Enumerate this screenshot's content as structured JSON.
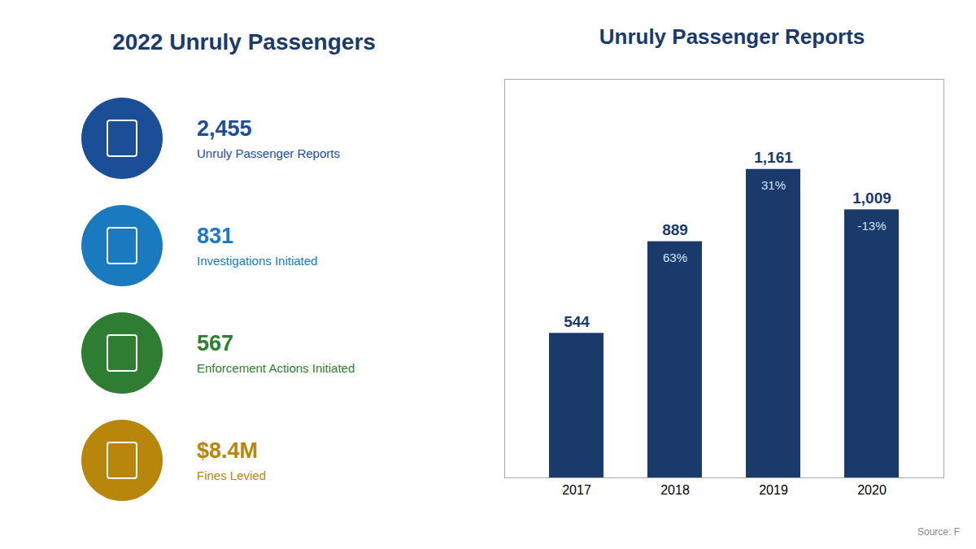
{
  "chart_data": {
    "type": "bar",
    "title": "Unruly Passenger Reports",
    "categories": [
      "2017",
      "2018",
      "2019",
      "2020"
    ],
    "values": [
      544,
      889,
      1161,
      1009
    ],
    "value_labels": [
      "544",
      "889",
      "1,161",
      "1,009"
    ],
    "data_labels": true,
    "pct_labels": [
      null,
      "63%",
      "31%",
      "-13%"
    ],
    "color": "#1a3a6b",
    "ylim": [
      0,
      1500
    ],
    "tick_labels": "x",
    "grid": false,
    "panel_title": "2022 Unruly Passengers",
    "stats": [
      {
        "value": "2,455",
        "label": "Unruly Passenger Reports",
        "color": "#1a4e96"
      },
      {
        "value": "831",
        "label": "Investigations Initiated",
        "color": "#1a7abf"
      },
      {
        "value": "567",
        "label": "Enforcement Actions Initiated",
        "color": "#2e7d32"
      },
      {
        "value": "$8.4M",
        "label": "Fines Levied",
        "color": "#b8860b"
      }
    ],
    "source": "Source: F"
  }
}
